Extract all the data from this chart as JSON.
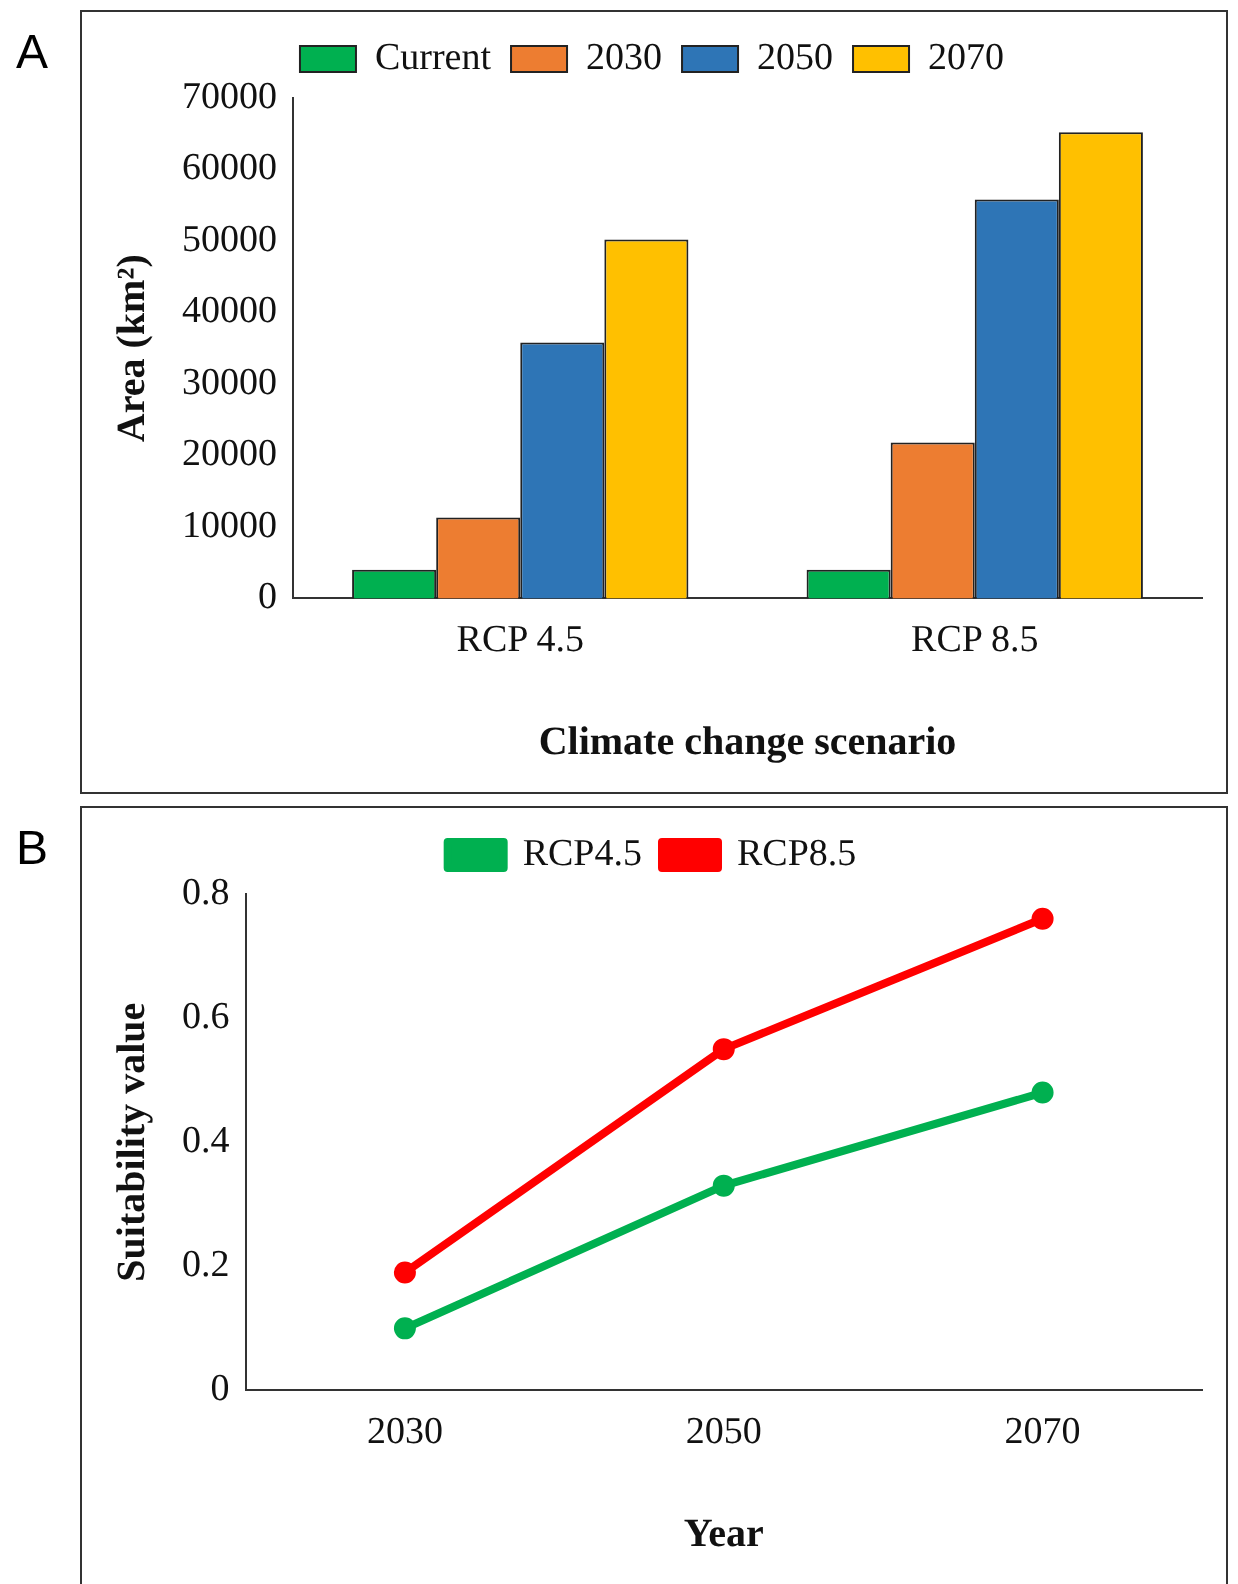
{
  "chart_data": [
    {
      "type": "bar",
      "categories": [
        "RCP 4.5",
        "RCP 8.5"
      ],
      "xlabel": "Climate change scenario",
      "ylabel": "Area (km²)",
      "ylim": [
        0,
        70000
      ],
      "yticks": [
        0,
        10000,
        20000,
        30000,
        40000,
        50000,
        60000,
        70000
      ],
      "grid": false,
      "legend": "top",
      "annotations": [
        "A"
      ],
      "series": [
        {
          "name": "Current",
          "color": "#00b050",
          "values": [
            4000,
            4000
          ]
        },
        {
          "name": "2030",
          "color": "#ed7d31",
          "values": [
            11300,
            21800
          ]
        },
        {
          "name": "2050",
          "color": "#2e75b6",
          "values": [
            35800,
            55800
          ]
        },
        {
          "name": "2070",
          "color": "#ffc000",
          "values": [
            50200,
            65200
          ]
        }
      ]
    },
    {
      "type": "line",
      "categories": [
        "2030",
        "2050",
        "2070"
      ],
      "xlabel": "Year",
      "ylabel": "Suitability value",
      "ylim": [
        0,
        0.8
      ],
      "yticks": [
        0,
        0.2,
        0.4,
        0.6,
        0.8
      ],
      "grid": false,
      "legend": "top",
      "marker": "circle",
      "line_style": "solid",
      "annotations": [
        "B"
      ],
      "series": [
        {
          "name": "RCP4.5",
          "color": "#00b050",
          "values": [
            0.1,
            0.33,
            0.48
          ]
        },
        {
          "name": "RCP8.5",
          "color": "#ff0000",
          "values": [
            0.19,
            0.55,
            0.76
          ]
        }
      ]
    }
  ]
}
